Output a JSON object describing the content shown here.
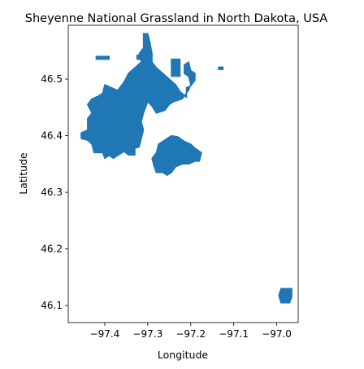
{
  "chart_data": {
    "type": "map",
    "title": "Sheyenne National Grassland in North Dakota, USA",
    "xlabel": "Longitude",
    "ylabel": "Latitude",
    "xlim": [
      -97.485,
      -96.95
    ],
    "ylim": [
      46.07,
      46.595
    ],
    "grid": false,
    "fill_color": "#1f77b4",
    "x_ticks": [
      {
        "value": -97.4,
        "label": "−97.4"
      },
      {
        "value": -97.3,
        "label": "−97.3"
      },
      {
        "value": -97.2,
        "label": "−97.2"
      },
      {
        "value": -97.1,
        "label": "−97.1"
      },
      {
        "value": -97.0,
        "label": "−97.0"
      }
    ],
    "y_ticks": [
      {
        "value": 46.1,
        "label": "46.1"
      },
      {
        "value": 46.2,
        "label": "46.2"
      },
      {
        "value": 46.3,
        "label": "46.3"
      },
      {
        "value": 46.4,
        "label": "46.4"
      },
      {
        "value": 46.5,
        "label": "46.5"
      }
    ],
    "regions": [
      {
        "name": "western-block",
        "polygon": [
          [
            -97.44,
            46.41
          ],
          [
            -97.455,
            46.405
          ],
          [
            -97.455,
            46.395
          ],
          [
            -97.44,
            46.392
          ],
          [
            -97.43,
            46.385
          ],
          [
            -97.425,
            46.37
          ],
          [
            -97.405,
            46.37
          ],
          [
            -97.4,
            46.36
          ],
          [
            -97.39,
            46.365
          ],
          [
            -97.38,
            46.36
          ],
          [
            -97.37,
            46.365
          ],
          [
            -97.355,
            46.372
          ],
          [
            -97.345,
            46.366
          ],
          [
            -97.33,
            46.366
          ],
          [
            -97.33,
            46.378
          ],
          [
            -97.32,
            46.38
          ],
          [
            -97.315,
            46.395
          ],
          [
            -97.31,
            46.41
          ],
          [
            -97.315,
            46.425
          ],
          [
            -97.31,
            46.44
          ],
          [
            -97.305,
            46.45
          ],
          [
            -97.3,
            46.46
          ],
          [
            -97.29,
            46.452
          ],
          [
            -97.28,
            46.44
          ],
          [
            -97.26,
            46.445
          ],
          [
            -97.25,
            46.455
          ],
          [
            -97.24,
            46.46
          ],
          [
            -97.22,
            46.465
          ],
          [
            -97.205,
            46.48
          ],
          [
            -97.2,
            46.49
          ],
          [
            -97.205,
            46.505
          ],
          [
            -97.215,
            46.51
          ],
          [
            -97.215,
            46.525
          ],
          [
            -97.205,
            46.53
          ],
          [
            -97.2,
            46.515
          ],
          [
            -97.19,
            46.51
          ],
          [
            -97.19,
            46.498
          ],
          [
            -97.2,
            46.488
          ],
          [
            -97.21,
            46.485
          ],
          [
            -97.21,
            46.468
          ],
          [
            -97.225,
            46.478
          ],
          [
            -97.235,
            46.49
          ],
          [
            -97.25,
            46.5
          ],
          [
            -97.265,
            46.51
          ],
          [
            -97.28,
            46.52
          ],
          [
            -97.29,
            46.53
          ],
          [
            -97.29,
            46.545
          ],
          [
            -97.295,
            46.565
          ],
          [
            -97.3,
            46.58
          ],
          [
            -97.31,
            46.58
          ],
          [
            -97.31,
            46.555
          ],
          [
            -97.32,
            46.545
          ],
          [
            -97.315,
            46.53
          ],
          [
            -97.33,
            46.52
          ],
          [
            -97.345,
            46.51
          ],
          [
            -97.355,
            46.495
          ],
          [
            -97.37,
            46.48
          ],
          [
            -97.385,
            46.485
          ],
          [
            -97.4,
            46.49
          ],
          [
            -97.405,
            46.475
          ],
          [
            -97.415,
            46.47
          ],
          [
            -97.43,
            46.465
          ],
          [
            -97.44,
            46.455
          ],
          [
            -97.43,
            46.44
          ],
          [
            -97.44,
            46.43
          ]
        ]
      },
      {
        "name": "eastern-block",
        "polygon": [
          [
            -97.28,
            46.37
          ],
          [
            -97.29,
            46.36
          ],
          [
            -97.285,
            46.345
          ],
          [
            -97.28,
            46.335
          ],
          [
            -97.265,
            46.335
          ],
          [
            -97.255,
            46.33
          ],
          [
            -97.245,
            46.335
          ],
          [
            -97.235,
            46.345
          ],
          [
            -97.22,
            46.35
          ],
          [
            -97.205,
            46.35
          ],
          [
            -97.19,
            46.355
          ],
          [
            -97.18,
            46.355
          ],
          [
            -97.175,
            46.37
          ],
          [
            -97.19,
            46.378
          ],
          [
            -97.2,
            46.385
          ],
          [
            -97.215,
            46.39
          ],
          [
            -97.23,
            46.398
          ],
          [
            -97.245,
            46.4
          ],
          [
            -97.255,
            46.395
          ],
          [
            -97.265,
            46.39
          ],
          [
            -97.275,
            46.385
          ]
        ]
      },
      {
        "name": "northwest-parcel",
        "polygon": [
          [
            -97.42,
            46.535
          ],
          [
            -97.39,
            46.535
          ],
          [
            -97.39,
            46.54
          ],
          [
            -97.42,
            46.54
          ]
        ]
      },
      {
        "name": "northeast-parcel",
        "polygon": [
          [
            -97.245,
            46.505
          ],
          [
            -97.225,
            46.505
          ],
          [
            -97.225,
            46.535
          ],
          [
            -97.245,
            46.535
          ]
        ]
      },
      {
        "name": "north-parcel",
        "polygon": [
          [
            -97.325,
            46.535
          ],
          [
            -97.315,
            46.535
          ],
          [
            -97.315,
            46.542
          ],
          [
            -97.325,
            46.542
          ]
        ]
      },
      {
        "name": "east-small-parcel",
        "polygon": [
          [
            -97.135,
            46.517
          ],
          [
            -97.125,
            46.517
          ],
          [
            -97.125,
            46.521
          ],
          [
            -97.135,
            46.521
          ]
        ]
      },
      {
        "name": "southeast-block",
        "polygon": [
          [
            -96.99,
            46.13
          ],
          [
            -96.965,
            46.13
          ],
          [
            -96.965,
            46.115
          ],
          [
            -96.97,
            46.105
          ],
          [
            -96.99,
            46.105
          ],
          [
            -96.995,
            46.118
          ]
        ]
      }
    ]
  }
}
